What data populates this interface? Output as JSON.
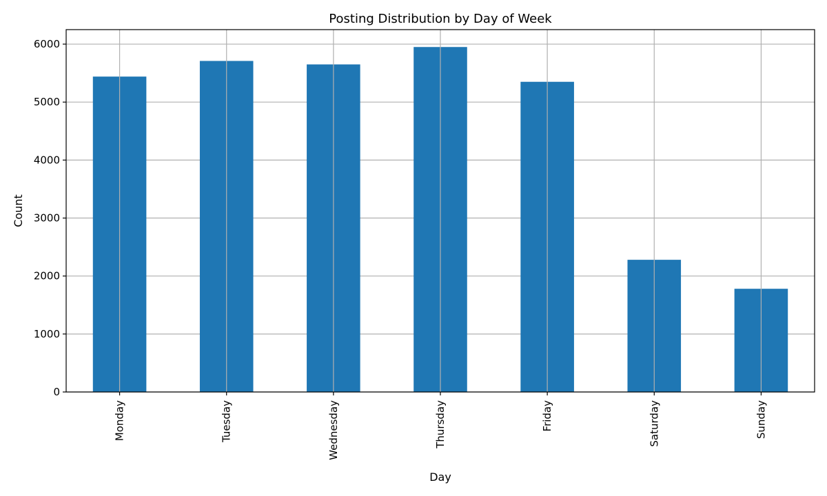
{
  "chart_data": {
    "type": "bar",
    "title": "Posting Distribution by Day of Week",
    "xlabel": "Day",
    "ylabel": "Count",
    "categories": [
      "Monday",
      "Tuesday",
      "Wednesday",
      "Thursday",
      "Friday",
      "Saturday",
      "Sunday"
    ],
    "values": [
      5440,
      5710,
      5650,
      5950,
      5350,
      2280,
      1780
    ],
    "ylim": [
      0,
      6250
    ],
    "yticks": [
      0,
      1000,
      2000,
      3000,
      4000,
      5000,
      6000
    ],
    "grid": true,
    "legend": "none",
    "colors": {
      "bar": "#1f77b4"
    }
  }
}
